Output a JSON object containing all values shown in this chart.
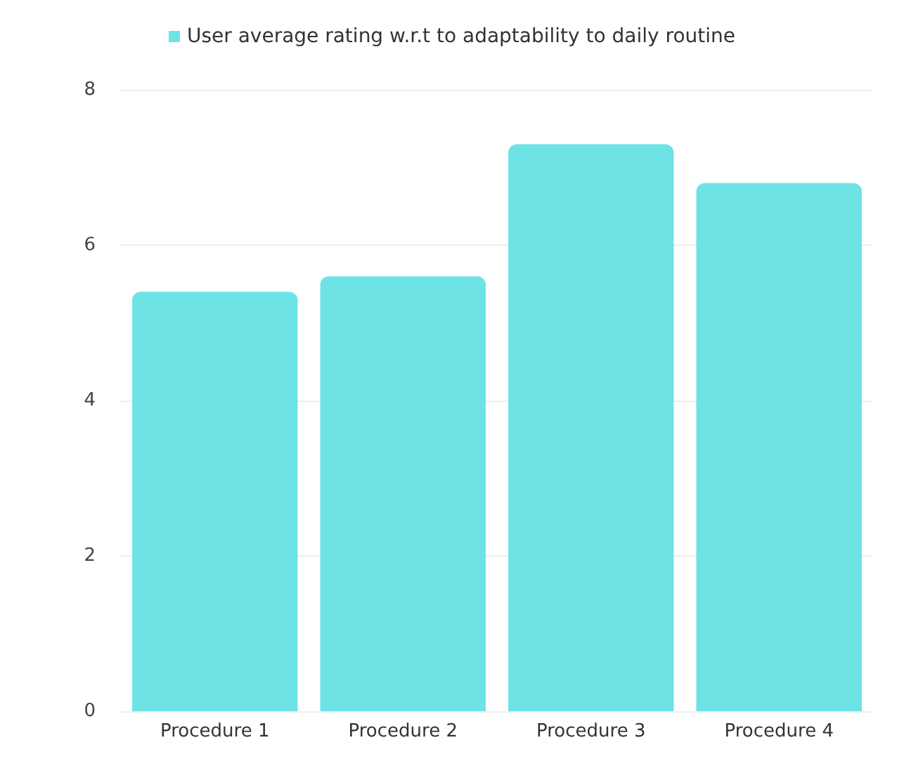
{
  "chart_data": {
    "type": "bar",
    "categories": [
      "Procedure 1",
      "Procedure 2",
      "Procedure 3",
      "Procedure 4"
    ],
    "series": [
      {
        "name": "User average rating w.r.t to adaptability to daily routine",
        "color": "#6ee3e6",
        "values": [
          5.4,
          5.6,
          7.3,
          6.8
        ]
      }
    ],
    "ylim": [
      0,
      8
    ],
    "yticks": [
      0,
      2,
      4,
      6,
      8
    ],
    "grid": "y",
    "legend": "top"
  }
}
